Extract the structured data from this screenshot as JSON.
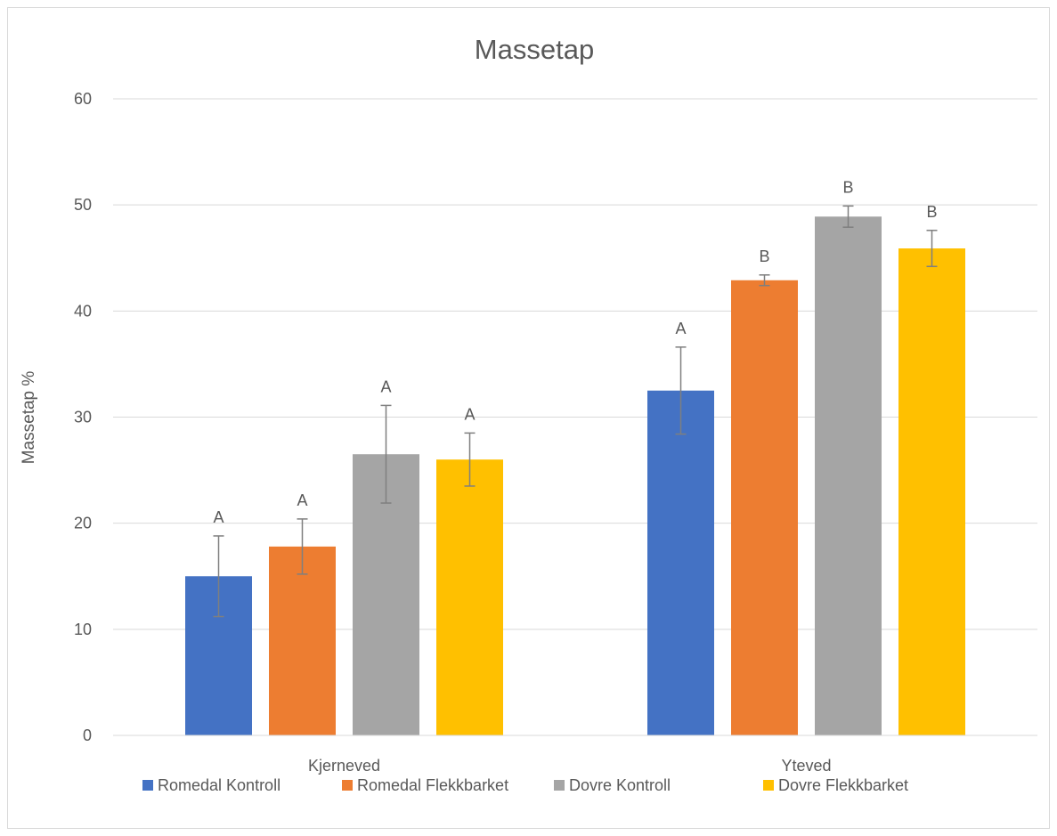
{
  "chart_data": {
    "type": "bar",
    "title": "Massetap",
    "ylabel": "Massetap %",
    "xlabel": "",
    "ylim": [
      0,
      60
    ],
    "yticks": [
      0,
      10,
      20,
      30,
      40,
      50,
      60
    ],
    "grid": true,
    "legend_position": "bottom",
    "categories": [
      "Kjerneved",
      "Yteved"
    ],
    "series": [
      {
        "name": "Romedal Kontroll",
        "color": "#4472c4",
        "values": [
          15.0,
          32.5
        ],
        "error": [
          3.8,
          4.1
        ],
        "labels": [
          "A",
          "A"
        ]
      },
      {
        "name": "Romedal Flekkbarket",
        "color": "#ed7d31",
        "values": [
          17.8,
          42.9
        ],
        "error": [
          2.6,
          0.5
        ],
        "labels": [
          "A",
          "B"
        ]
      },
      {
        "name": "Dovre Kontroll",
        "color": "#a5a5a5",
        "values": [
          26.5,
          48.9
        ],
        "error": [
          4.6,
          1.0
        ],
        "labels": [
          "A",
          "B"
        ]
      },
      {
        "name": "Dovre Flekkbarket",
        "color": "#ffc000",
        "values": [
          26.0,
          45.9
        ],
        "error": [
          2.5,
          1.7
        ],
        "labels": [
          "A",
          "B"
        ]
      }
    ]
  }
}
